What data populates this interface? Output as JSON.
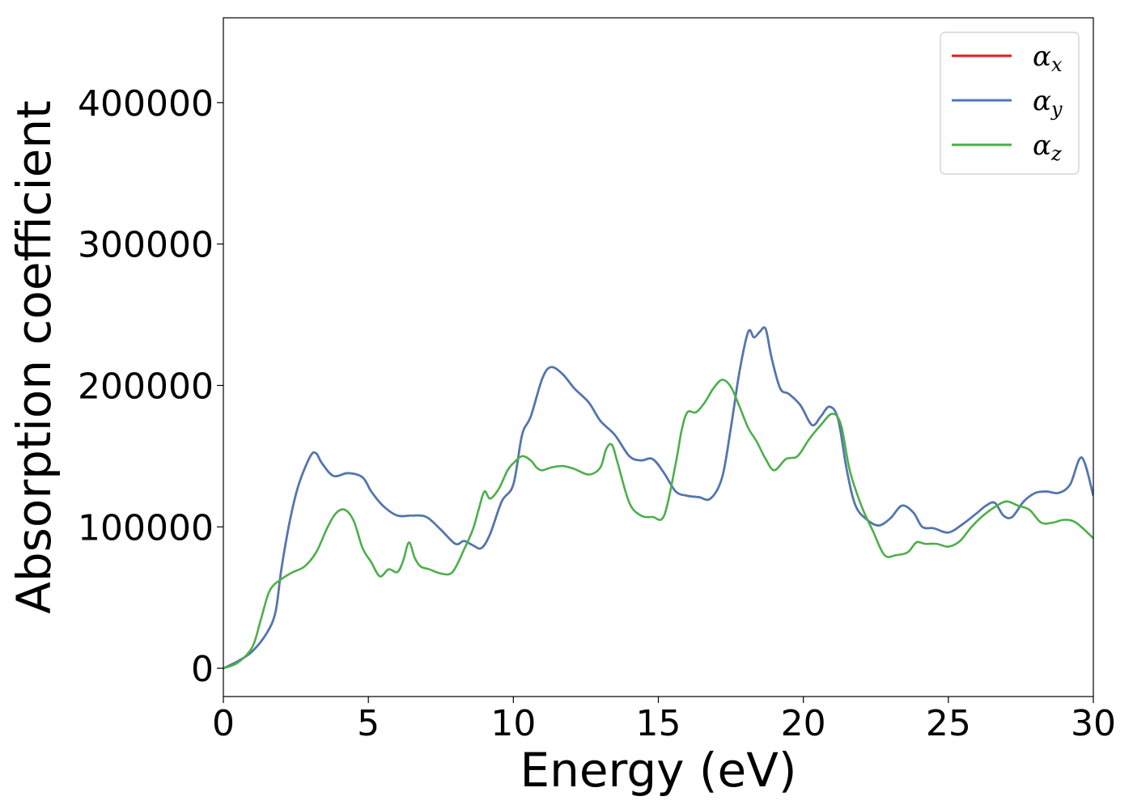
{
  "chart_data": {
    "type": "line",
    "xlabel": "Energy (eV)",
    "ylabel": "Absorption coefficient",
    "xlim": [
      0,
      30
    ],
    "ylim": [
      -20000,
      460000
    ],
    "xticks": [
      0,
      5,
      10,
      15,
      20,
      25,
      30
    ],
    "yticks": [
      0,
      100000,
      200000,
      300000,
      400000
    ],
    "grid": false,
    "legend_position": "top-right",
    "series": [
      {
        "name_symbol": "α",
        "name_sub": "x",
        "color": "#e41a1c",
        "x": [
          0,
          0.5,
          1,
          1.5,
          1.8,
          2,
          2.3,
          2.6,
          3,
          3.2,
          3.4,
          3.8,
          4.3,
          4.8,
          5.1,
          5.5,
          6,
          6.5,
          7,
          7.5,
          8,
          8.3,
          8.6,
          8.9,
          9.2,
          9.6,
          10,
          10.3,
          10.6,
          11,
          11.3,
          11.7,
          12.1,
          12.6,
          13,
          13.5,
          14,
          14.4,
          14.8,
          15.2,
          15.6,
          16,
          16.4,
          16.8,
          17.2,
          17.5,
          17.8,
          18.1,
          18.3,
          18.5,
          18.7,
          18.9,
          19.2,
          19.5,
          19.9,
          20.3,
          20.6,
          20.9,
          21.2,
          21.5,
          21.8,
          22.2,
          22.6,
          23,
          23.4,
          23.8,
          24.1,
          24.5,
          25,
          25.5,
          26,
          26.3,
          26.6,
          26.9,
          27.2,
          27.6,
          28,
          28.4,
          28.8,
          29.2,
          29.6,
          30
        ],
        "y": [
          0,
          5000,
          12000,
          25000,
          40000,
          70000,
          105000,
          130000,
          150000,
          152000,
          145000,
          136000,
          138000,
          135000,
          125000,
          115000,
          108000,
          108000,
          107000,
          98000,
          88000,
          90000,
          87000,
          85000,
          95000,
          118000,
          130000,
          165000,
          178000,
          205000,
          213000,
          208000,
          198000,
          188000,
          175000,
          165000,
          150000,
          147000,
          148000,
          138000,
          125000,
          122000,
          121000,
          120000,
          135000,
          170000,
          210000,
          238000,
          234000,
          238000,
          240000,
          220000,
          198000,
          194000,
          186000,
          172000,
          178000,
          185000,
          176000,
          140000,
          115000,
          105000,
          101000,
          106000,
          115000,
          110000,
          100000,
          99000,
          96000,
          102000,
          110000,
          115000,
          117000,
          108000,
          107000,
          118000,
          124000,
          125000,
          124000,
          130000,
          149000,
          122000
        ]
      },
      {
        "name_symbol": "α",
        "name_sub": "y",
        "color": "#4a7ab5",
        "x": [
          0,
          0.5,
          1,
          1.5,
          1.8,
          2,
          2.3,
          2.6,
          3,
          3.2,
          3.4,
          3.8,
          4.3,
          4.8,
          5.1,
          5.5,
          6,
          6.5,
          7,
          7.5,
          8,
          8.3,
          8.6,
          8.9,
          9.2,
          9.6,
          10,
          10.3,
          10.6,
          11,
          11.3,
          11.7,
          12.1,
          12.6,
          13,
          13.5,
          14,
          14.4,
          14.8,
          15.2,
          15.6,
          16,
          16.4,
          16.8,
          17.2,
          17.5,
          17.8,
          18.1,
          18.3,
          18.5,
          18.7,
          18.9,
          19.2,
          19.5,
          19.9,
          20.3,
          20.6,
          20.9,
          21.2,
          21.5,
          21.8,
          22.2,
          22.6,
          23,
          23.4,
          23.8,
          24.1,
          24.5,
          25,
          25.5,
          26,
          26.3,
          26.6,
          26.9,
          27.2,
          27.6,
          28,
          28.4,
          28.8,
          29.2,
          29.6,
          30
        ],
        "y": [
          0,
          5000,
          12000,
          25000,
          40000,
          70000,
          105000,
          130000,
          150000,
          152000,
          145000,
          136000,
          138000,
          135000,
          125000,
          115000,
          108000,
          108000,
          107000,
          98000,
          88000,
          90000,
          87000,
          85000,
          95000,
          118000,
          130000,
          165000,
          178000,
          205000,
          213000,
          208000,
          198000,
          188000,
          175000,
          165000,
          150000,
          147000,
          148000,
          138000,
          125000,
          122000,
          121000,
          120000,
          135000,
          170000,
          210000,
          238000,
          234000,
          238000,
          240000,
          220000,
          198000,
          194000,
          186000,
          172000,
          178000,
          185000,
          176000,
          140000,
          115000,
          105000,
          101000,
          106000,
          115000,
          110000,
          100000,
          99000,
          96000,
          102000,
          110000,
          115000,
          117000,
          108000,
          107000,
          118000,
          124000,
          125000,
          124000,
          130000,
          149000,
          122000
        ]
      },
      {
        "name_symbol": "α",
        "name_sub": "z",
        "color": "#4daf4a",
        "x": [
          0,
          0.5,
          1,
          1.3,
          1.6,
          2,
          2.4,
          2.8,
          3.2,
          3.6,
          3.9,
          4.2,
          4.5,
          4.8,
          5.1,
          5.4,
          5.7,
          6,
          6.2,
          6.4,
          6.6,
          6.8,
          7.1,
          7.5,
          7.9,
          8.3,
          8.6,
          8.8,
          9,
          9.2,
          9.5,
          9.8,
          10,
          10.3,
          10.6,
          10.8,
          11,
          11.3,
          11.7,
          12.1,
          12.6,
          13,
          13.2,
          13.4,
          13.6,
          14,
          14.4,
          14.8,
          15.2,
          15.6,
          15.8,
          16,
          16.3,
          16.6,
          16.9,
          17.2,
          17.5,
          17.8,
          18.1,
          18.4,
          18.7,
          19,
          19.4,
          19.8,
          20.2,
          20.6,
          21,
          21.3,
          21.6,
          22,
          22.4,
          22.8,
          23.2,
          23.6,
          23.9,
          24.2,
          24.6,
          25,
          25.4,
          25.8,
          26.2,
          26.6,
          27,
          27.4,
          27.8,
          28.2,
          28.6,
          29,
          29.4,
          30
        ],
        "y": [
          0,
          4000,
          15000,
          35000,
          55000,
          63000,
          68000,
          72000,
          82000,
          100000,
          110000,
          112000,
          104000,
          85000,
          75000,
          65000,
          70000,
          68000,
          76000,
          89000,
          78000,
          72000,
          70000,
          67000,
          68000,
          84000,
          98000,
          112000,
          125000,
          120000,
          127000,
          140000,
          145000,
          150000,
          147000,
          142000,
          140000,
          142000,
          143000,
          141000,
          137000,
          142000,
          155000,
          158000,
          145000,
          117000,
          108000,
          107000,
          108000,
          145000,
          168000,
          181000,
          181000,
          188000,
          198000,
          204000,
          199000,
          185000,
          170000,
          160000,
          148000,
          140000,
          148000,
          150000,
          162000,
          172000,
          180000,
          172000,
          140000,
          115000,
          97000,
          80000,
          80000,
          82000,
          89000,
          88000,
          88000,
          86000,
          90000,
          100000,
          108000,
          114000,
          118000,
          115000,
          112000,
          103000,
          103000,
          105000,
          103000,
          92000
        ]
      }
    ]
  }
}
